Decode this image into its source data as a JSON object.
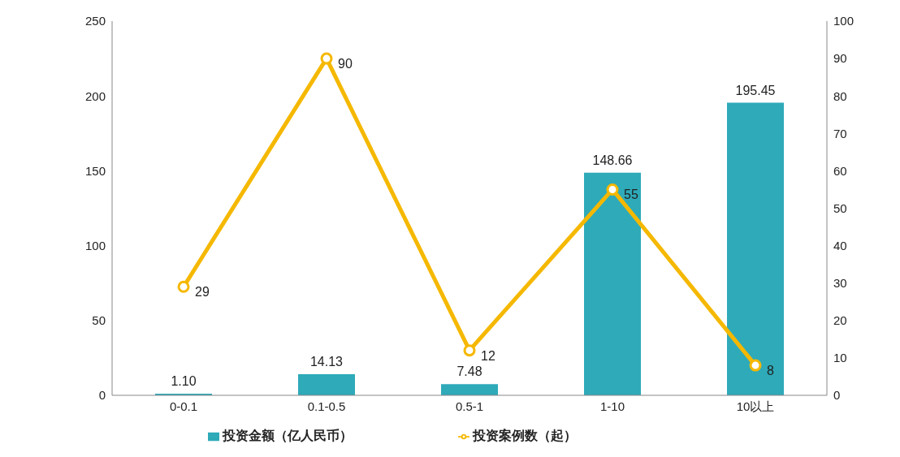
{
  "chart_data": {
    "type": "bar",
    "categories": [
      "0-0.1",
      "0.1-0.5",
      "0.5-1",
      "1-10",
      "10以上"
    ],
    "series": [
      {
        "name": "投资金额（亿人民币）",
        "color": "#2eaab9",
        "values": [
          1.1,
          14.13,
          7.48,
          148.66,
          195.45
        ],
        "value_labels": [
          "1.10",
          "14.13",
          "7.48",
          "148.66",
          "195.45"
        ]
      },
      {
        "name": "投资案例数（起）",
        "type": "line",
        "axis": "y2",
        "color": "#f5b800",
        "values": [
          29,
          90,
          12,
          55,
          8
        ],
        "value_labels": [
          "29",
          "90",
          "12",
          "55",
          "8"
        ]
      }
    ],
    "ylim": [
      0,
      250
    ],
    "yticks": [
      0,
      50,
      100,
      150,
      200,
      250
    ],
    "y2lim": [
      0,
      100
    ],
    "y2ticks": [
      0,
      10,
      20,
      30,
      40,
      50,
      60,
      70,
      80,
      90,
      100
    ],
    "legend": "bottom",
    "marker": "circle",
    "line_style": "solid"
  }
}
